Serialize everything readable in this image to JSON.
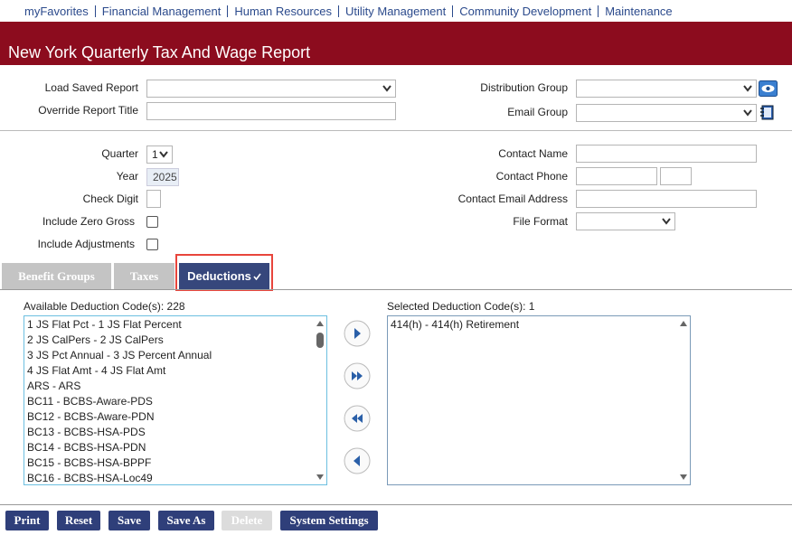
{
  "nav": {
    "links": [
      "myFavorites",
      "Financial Management",
      "Human Resources",
      "Utility Management",
      "Community Development",
      "Maintenance"
    ]
  },
  "header": {
    "title": "New York Quarterly Tax And Wage Report"
  },
  "report": {
    "load_saved_report": {
      "label": "Load Saved Report"
    },
    "override_report_title": {
      "label": "Override Report Title"
    },
    "distribution_group": {
      "label": "Distribution Group"
    },
    "email_group": {
      "label": "Email Group"
    }
  },
  "options": {
    "quarter": {
      "label": "Quarter",
      "value": "1"
    },
    "year": {
      "label": "Year",
      "value": "2025"
    },
    "check_digit": {
      "label": "Check Digit"
    },
    "include_zero_gross": {
      "label": "Include Zero Gross"
    },
    "include_adjustments": {
      "label": "Include Adjustments"
    },
    "contact_name": {
      "label": "Contact Name"
    },
    "contact_phone": {
      "label": "Contact Phone"
    },
    "contact_email": {
      "label": "Contact Email Address"
    },
    "file_format": {
      "label": "File Format"
    }
  },
  "tabs": [
    "Benefit Groups",
    "Taxes",
    "Deductions"
  ],
  "available": {
    "label": "Available Deduction Code(s): 228",
    "items": [
      "1 JS Flat Pct - 1 JS Flat Percent",
      "2 JS CalPers - 2 JS CalPers",
      "3 JS Pct Annual - 3 JS Percent Annual",
      "4 JS Flat Amt - 4 JS Flat Amt",
      "ARS - ARS",
      "BC11 - BCBS-Aware-PDS",
      "BC12 - BCBS-Aware-PDN",
      "BC13 - BCBS-HSA-PDS",
      "BC14 - BCBS-HSA-PDN",
      "BC15 - BCBS-HSA-BPPF",
      "BC16 - BCBS-HSA-Loc49"
    ]
  },
  "selected": {
    "label": "Selected Deduction Code(s): 1",
    "items": [
      "414(h) - 414(h) Retirement"
    ]
  },
  "buttons": [
    "Print",
    "Reset",
    "Save",
    "Save As",
    "Delete",
    "System Settings"
  ]
}
